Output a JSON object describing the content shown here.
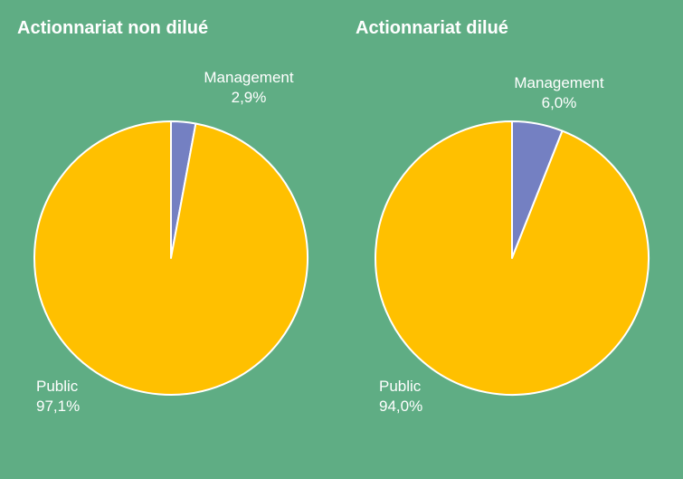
{
  "colors": {
    "background": "#5fad84",
    "management": "#7480c2",
    "public": "#ffc000",
    "stroke": "#ffffff"
  },
  "chart_data": [
    {
      "type": "pie",
      "title": "Actionnariat non dilué",
      "slices": [
        {
          "label": "Management",
          "value": 2.9,
          "value_label": "2,9%"
        },
        {
          "label": "Public",
          "value": 97.1,
          "value_label": "97,1%"
        }
      ]
    },
    {
      "type": "pie",
      "title": "Actionnariat dilué",
      "slices": [
        {
          "label": "Management",
          "value": 6.0,
          "value_label": "6,0%"
        },
        {
          "label": "Public",
          "value": 94.0,
          "value_label": "94,0%"
        }
      ]
    }
  ]
}
